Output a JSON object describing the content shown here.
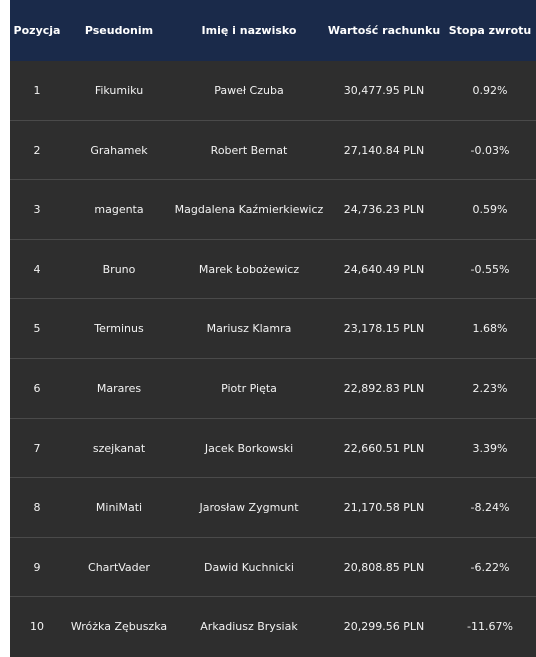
{
  "table": {
    "headers": [
      "Pozycja",
      "Pseudonim",
      "Imię i nazwisko",
      "Wartość rachunku",
      "Stopa zwrotu"
    ],
    "rows": [
      {
        "rank": "1",
        "nick": "Fikumiku",
        "name": "Paweł Czuba",
        "value": "30,477.95 PLN",
        "return": "0.92%"
      },
      {
        "rank": "2",
        "nick": "Grahamek",
        "name": "Robert Bernat",
        "value": "27,140.84 PLN",
        "return": "-0.03%"
      },
      {
        "rank": "3",
        "nick": "magenta",
        "name": "Magdalena Kaźmierkiewicz",
        "value": "24,736.23 PLN",
        "return": "0.59%"
      },
      {
        "rank": "4",
        "nick": "Bruno",
        "name": "Marek Łobożewicz",
        "value": "24,640.49 PLN",
        "return": "-0.55%"
      },
      {
        "rank": "5",
        "nick": "Terminus",
        "name": "Mariusz Klamra",
        "value": "23,178.15 PLN",
        "return": "1.68%"
      },
      {
        "rank": "6",
        "nick": "Marares",
        "name": "Piotr Pięta",
        "value": "22,892.83 PLN",
        "return": "2.23%"
      },
      {
        "rank": "7",
        "nick": "szejkanat",
        "name": "Jacek Borkowski",
        "value": "22,660.51 PLN",
        "return": "3.39%"
      },
      {
        "rank": "8",
        "nick": "MiniMati",
        "name": "Jarosław Zygmunt",
        "value": "21,170.58 PLN",
        "return": "-8.24%"
      },
      {
        "rank": "9",
        "nick": "ChartVader",
        "name": "Dawid Kuchnicki",
        "value": "20,808.85 PLN",
        "return": "-6.22%"
      },
      {
        "rank": "10",
        "nick": "Wróżka Zębuszka",
        "name": "Arkadiusz Brysiak",
        "value": "20,299.56 PLN",
        "return": "-11.67%"
      }
    ]
  },
  "colors": {
    "header_bg": "#1a2a4a",
    "body_bg": "#2e2e2e",
    "row_divider": "#4a4a4a",
    "text": "#f2f2f2"
  }
}
